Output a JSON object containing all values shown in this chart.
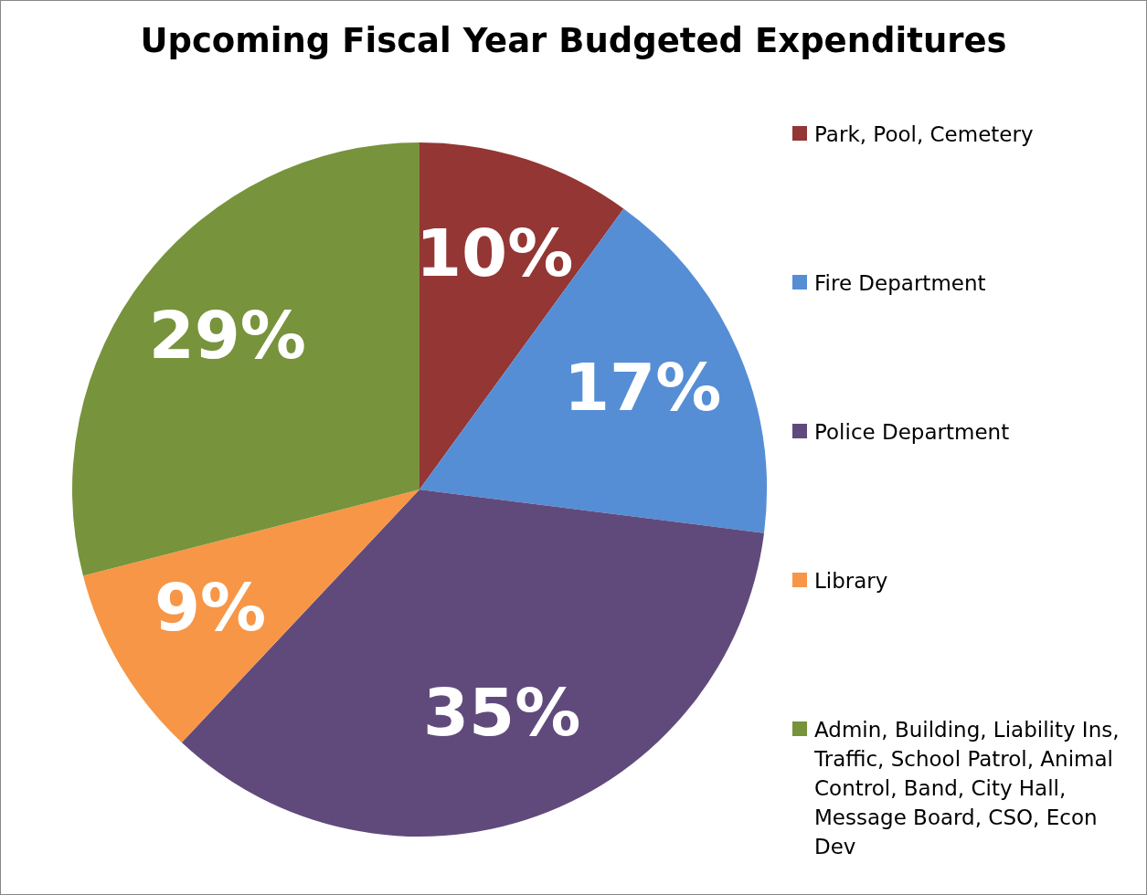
{
  "chart_data": {
    "type": "pie",
    "title": "Upcoming Fiscal Year Budgeted Expenditures",
    "categories": [
      "Park, Pool, Cemetery",
      "Fire Department",
      "Police Department",
      "Library",
      "Admin, Building, Liability Ins, Traffic, School Patrol, Animal Control, Band, City Hall, Message Board, CSO, Econ Dev"
    ],
    "values": [
      10,
      17,
      35,
      9,
      29
    ],
    "colors": [
      "#943634",
      "#558ed5",
      "#604a7b",
      "#f79646",
      "#77933c"
    ],
    "value_labels": [
      "10%",
      "17%",
      "35%",
      "9%",
      "29%"
    ],
    "legend": "right"
  }
}
